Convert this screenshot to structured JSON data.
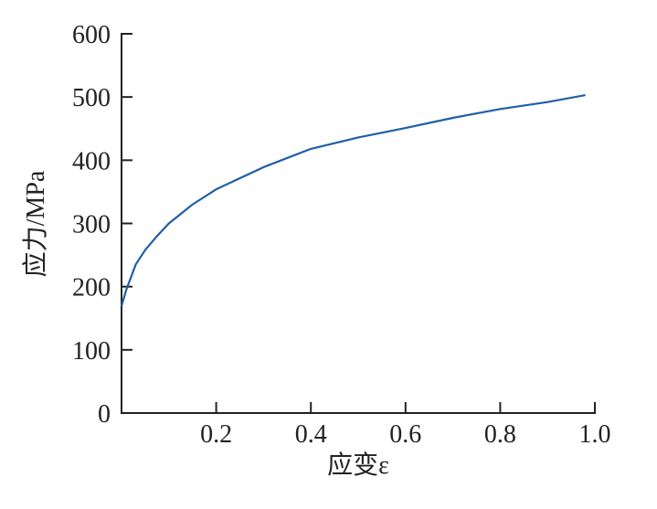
{
  "chart_data": {
    "type": "line",
    "x_label": "应变ε",
    "y_label": "应力/MPa",
    "x": [
      0,
      0.01,
      0.03,
      0.05,
      0.075,
      0.1,
      0.15,
      0.2,
      0.3,
      0.4,
      0.5,
      0.6,
      0.7,
      0.8,
      0.9,
      0.98
    ],
    "series": [
      {
        "color": "#1f5fa5",
        "values": [
          169,
          195,
          235,
          258,
          280,
          300,
          330,
          354,
          389,
          418,
          436,
          451,
          467,
          481,
          492,
          503
        ]
      }
    ],
    "xlim": [
      0,
      1
    ],
    "xticks": [
      0.2,
      0.4,
      0.6,
      0.8,
      {
        "value": 1,
        "label": "1.0"
      }
    ],
    "ylim": [
      0,
      600
    ],
    "yticks": [
      0,
      100,
      200,
      300,
      400,
      500,
      600
    ]
  }
}
